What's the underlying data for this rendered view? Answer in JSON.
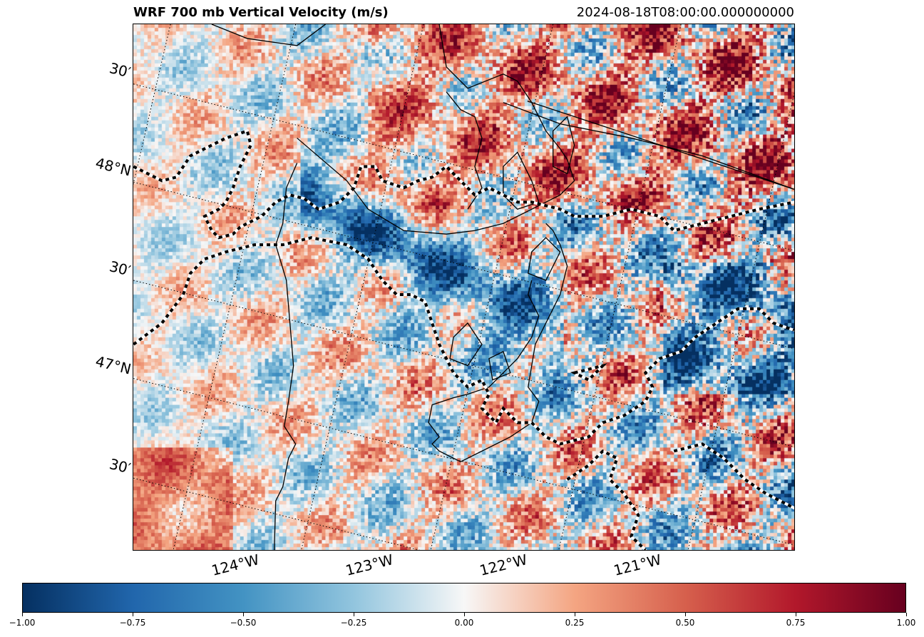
{
  "title": "WRF 700 mb Vertical Velocity (m/s)",
  "timestamp": "2024-08-18T08:00:00.000000000",
  "map": {
    "field": "700 mb vertical velocity",
    "units": "m/s",
    "colormap": "RdBu_r",
    "colors": {
      "low": "#053061",
      "mid": "#f7f7f7",
      "high": "#67001f"
    },
    "lat_labels": [
      "30′",
      "48°N",
      "30′",
      "47°N",
      "30′"
    ],
    "lon_labels": [
      "124°W",
      "123°W",
      "122°W",
      "121°W"
    ],
    "features": [
      "coastlines",
      "state-borders",
      "contour-dashed-lines",
      "dotted-graticule"
    ]
  },
  "colorbar": {
    "range": [
      -1.0,
      1.0
    ],
    "ticks": [
      "−1.00",
      "−0.75",
      "−0.50",
      "−0.25",
      "0.00",
      "0.25",
      "0.50",
      "0.75",
      "1.00"
    ]
  }
}
